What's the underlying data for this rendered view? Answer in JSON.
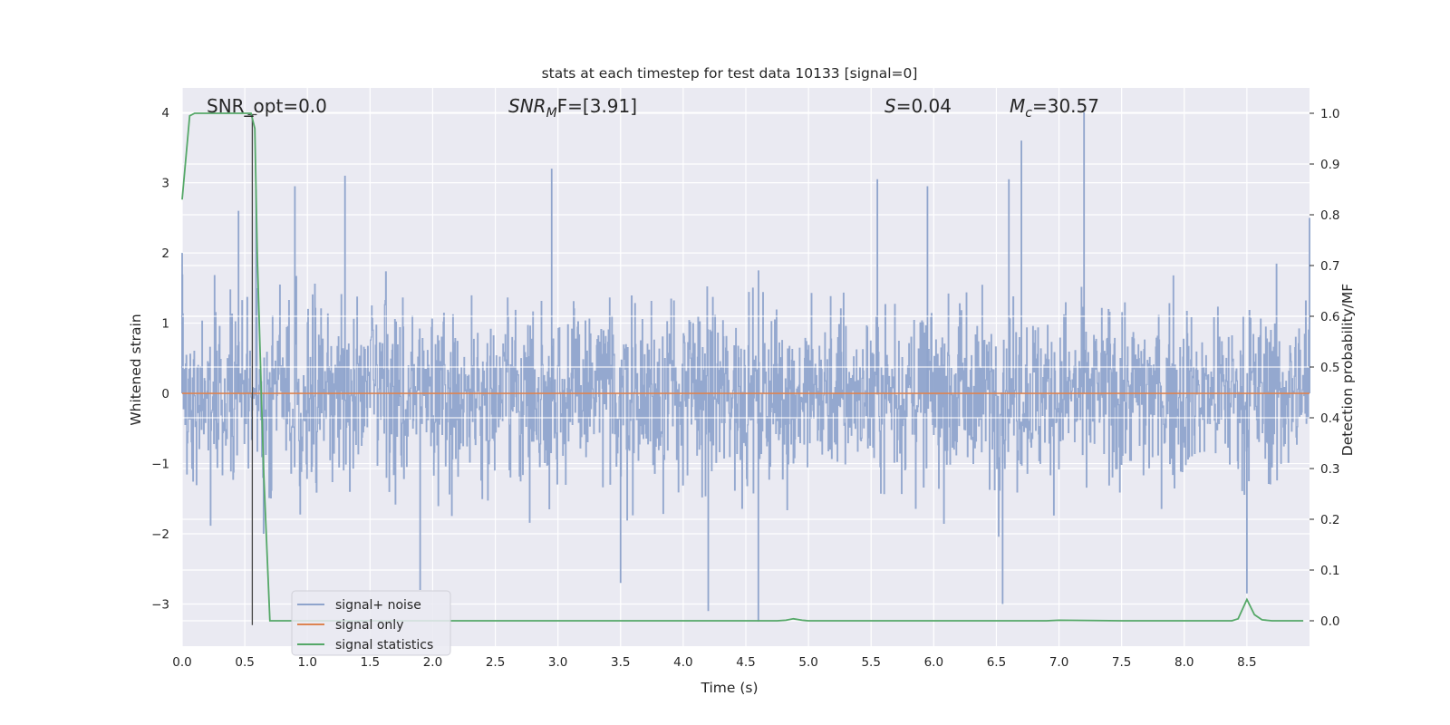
{
  "chart_data": {
    "type": "line",
    "title": "stats at each timestep for test data 10133 [signal=0]",
    "xlabel": "Time (s)",
    "ylabel_left": "Whitened strain",
    "ylabel_right": "Detection probability/MF",
    "xlim": [
      0,
      9.0
    ],
    "ylim_left": [
      -3.6,
      4.35
    ],
    "ylim_right": [
      -0.05,
      1.05
    ],
    "x_ticks": [
      "0.0",
      "0.5",
      "1.0",
      "1.5",
      "2.0",
      "2.5",
      "3.0",
      "3.5",
      "4.0",
      "4.5",
      "5.0",
      "5.5",
      "6.0",
      "6.5",
      "7.0",
      "7.5",
      "8.0",
      "8.5"
    ],
    "y_ticks_left": [
      "−3",
      "−2",
      "−1",
      "0",
      "1",
      "2",
      "3",
      "4"
    ],
    "y_ticks_right": [
      "0.0",
      "0.1",
      "0.2",
      "0.3",
      "0.4",
      "0.5",
      "0.6",
      "0.7",
      "0.8",
      "0.9",
      "1.0"
    ],
    "grid": true,
    "annotations": {
      "snr_opt": "SNR_opt=0.0",
      "snr_mf_base": "SNR",
      "snr_mf_sub": "M",
      "snr_mf_rest": "F=[3.91]",
      "s_label": "S",
      "s_value": "=0.04",
      "mc_base": "M",
      "mc_sub": "c",
      "mc_value": "=30.57"
    },
    "marker_time": 0.56,
    "legend": {
      "placement": "lower-left",
      "entries": [
        {
          "label": "signal+ noise",
          "color": "#8fa4cc"
        },
        {
          "label": "signal only",
          "color": "#dd8452"
        },
        {
          "label": "signal statistics",
          "color": "#55a868"
        }
      ]
    },
    "series": [
      {
        "name": "signal statistics",
        "axis": "right",
        "color": "#55a868",
        "x": [
          0.0,
          0.06,
          0.1,
          0.15,
          0.2,
          0.3,
          0.4,
          0.5,
          0.55,
          0.58,
          0.6,
          0.65,
          0.7,
          1.0,
          2.0,
          3.0,
          4.0,
          4.75,
          4.82,
          4.88,
          4.95,
          5.0,
          6.0,
          6.9,
          7.0,
          7.5,
          8.0,
          8.38,
          8.43,
          8.5,
          8.56,
          8.62,
          8.7,
          8.95
        ],
        "y": [
          0.83,
          0.995,
          1.0,
          1.0,
          1.0,
          1.0,
          1.0,
          1.0,
          1.0,
          0.97,
          0.72,
          0.3,
          0.0,
          0.0,
          0.0,
          0.0,
          0.0,
          0.0,
          0.001,
          0.004,
          0.001,
          0.0,
          0.0,
          0.0,
          0.001,
          0.0,
          0.0,
          0.0,
          0.004,
          0.042,
          0.012,
          0.002,
          0.0,
          0.0
        ]
      },
      {
        "name": "signal only",
        "axis": "left",
        "color": "#dd8452",
        "x": [
          0.0,
          9.0
        ],
        "y": [
          0.0,
          0.0
        ]
      },
      {
        "name": "signal+ noise",
        "axis": "left",
        "color": "#8fa4cc",
        "x": [
          0.0,
          0.45,
          0.59,
          0.65,
          0.9,
          1.3,
          1.9,
          2.95,
          3.5,
          4.2,
          4.6,
          5.55,
          5.95,
          6.55,
          6.6,
          6.7,
          7.2,
          8.5,
          9.0
        ],
        "y": [
          2.0,
          2.6,
          2.9,
          -2.0,
          2.95,
          3.1,
          -2.8,
          3.2,
          -2.7,
          -3.1,
          -3.25,
          3.05,
          2.95,
          -3.0,
          3.05,
          3.6,
          4.0,
          -2.85,
          2.5
        ],
        "note_hidden": ""
      }
    ]
  }
}
